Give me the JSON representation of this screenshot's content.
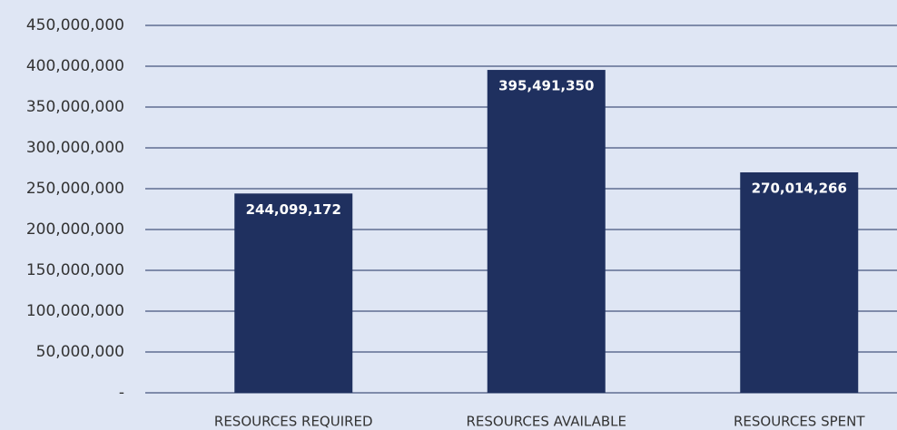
{
  "chart_data": {
    "type": "bar",
    "categories": [
      "RESOURCES REQUIRED",
      "RESOURCES AVAILABLE",
      "RESOURCES SPENT"
    ],
    "values": [
      244099172,
      395491350,
      270014266
    ],
    "value_labels": [
      "244,099,172",
      "395,491,350",
      "270,014,266"
    ],
    "color": "#1f305f",
    "ylim": [
      0,
      450000000
    ],
    "yticks": [
      {
        "value": 0,
        "label": "-"
      },
      {
        "value": 50000000,
        "label": "50,000,000"
      },
      {
        "value": 100000000,
        "label": "100,000,000"
      },
      {
        "value": 150000000,
        "label": "150,000,000"
      },
      {
        "value": 200000000,
        "label": "200,000,000"
      },
      {
        "value": 250000000,
        "label": "250,000,000"
      },
      {
        "value": 300000000,
        "label": "300,000,000"
      },
      {
        "value": 350000000,
        "label": "350,000,000"
      },
      {
        "value": 400000000,
        "label": "400,000,000"
      },
      {
        "value": 450000000,
        "label": "450,000,000"
      }
    ],
    "grid": true
  }
}
